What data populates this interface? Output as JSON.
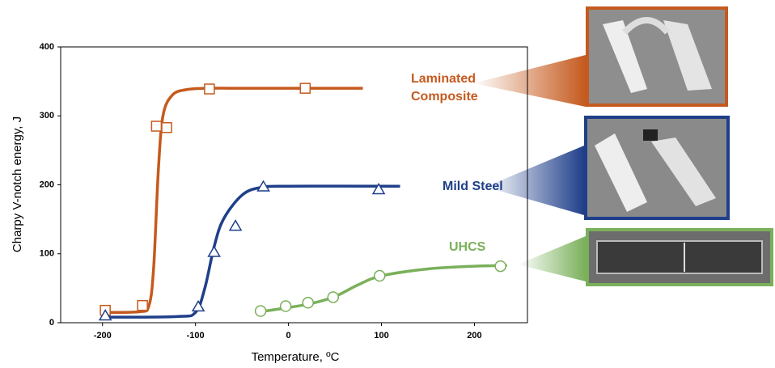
{
  "chart_data": {
    "type": "line",
    "xlabel": "Temperature, ºC",
    "ylabel": "Charpy V-notch energy, J",
    "xlim": [
      -245,
      257
    ],
    "ylim": [
      0,
      400
    ],
    "xticks": [
      -200,
      -100,
      0,
      100,
      200
    ],
    "yticks": [
      0,
      100,
      200,
      300,
      400
    ],
    "grid": false,
    "series": [
      {
        "name": "Laminated Composite",
        "color": "#c55a1e",
        "marker": "square",
        "x": [
          -197,
          -157,
          -142,
          -131,
          -85,
          18
        ],
        "values": [
          18,
          25,
          285,
          283,
          339,
          340
        ],
        "line_x": [
          -200,
          -160,
          -150,
          -145,
          -140,
          -135,
          -125,
          -110,
          -90,
          -50,
          80
        ],
        "line_values": [
          15,
          16,
          25,
          80,
          220,
          300,
          330,
          338,
          340,
          340,
          340
        ]
      },
      {
        "name": "Mild Steel",
        "color": "#1f3f8a",
        "marker": "triangle",
        "x": [
          -197,
          -97,
          -80,
          -57,
          -27,
          97
        ],
        "values": [
          10,
          23,
          102,
          140,
          197,
          193
        ],
        "line_x": [
          -200,
          -120,
          -100,
          -90,
          -80,
          -70,
          -50,
          -30,
          0,
          120
        ],
        "line_values": [
          8,
          9,
          15,
          50,
          110,
          150,
          185,
          196,
          198,
          198
        ]
      },
      {
        "name": "UHCS",
        "color": "#7ab05a",
        "marker": "circle",
        "x": [
          -30,
          -3,
          21,
          48,
          98,
          228
        ],
        "values": [
          17,
          24,
          29,
          37,
          68,
          82
        ],
        "line_x": [
          -35,
          0,
          25,
          50,
          75,
          100,
          150,
          200,
          235
        ],
        "line_values": [
          15,
          22,
          28,
          38,
          55,
          68,
          78,
          82,
          83
        ]
      }
    ]
  }
}
